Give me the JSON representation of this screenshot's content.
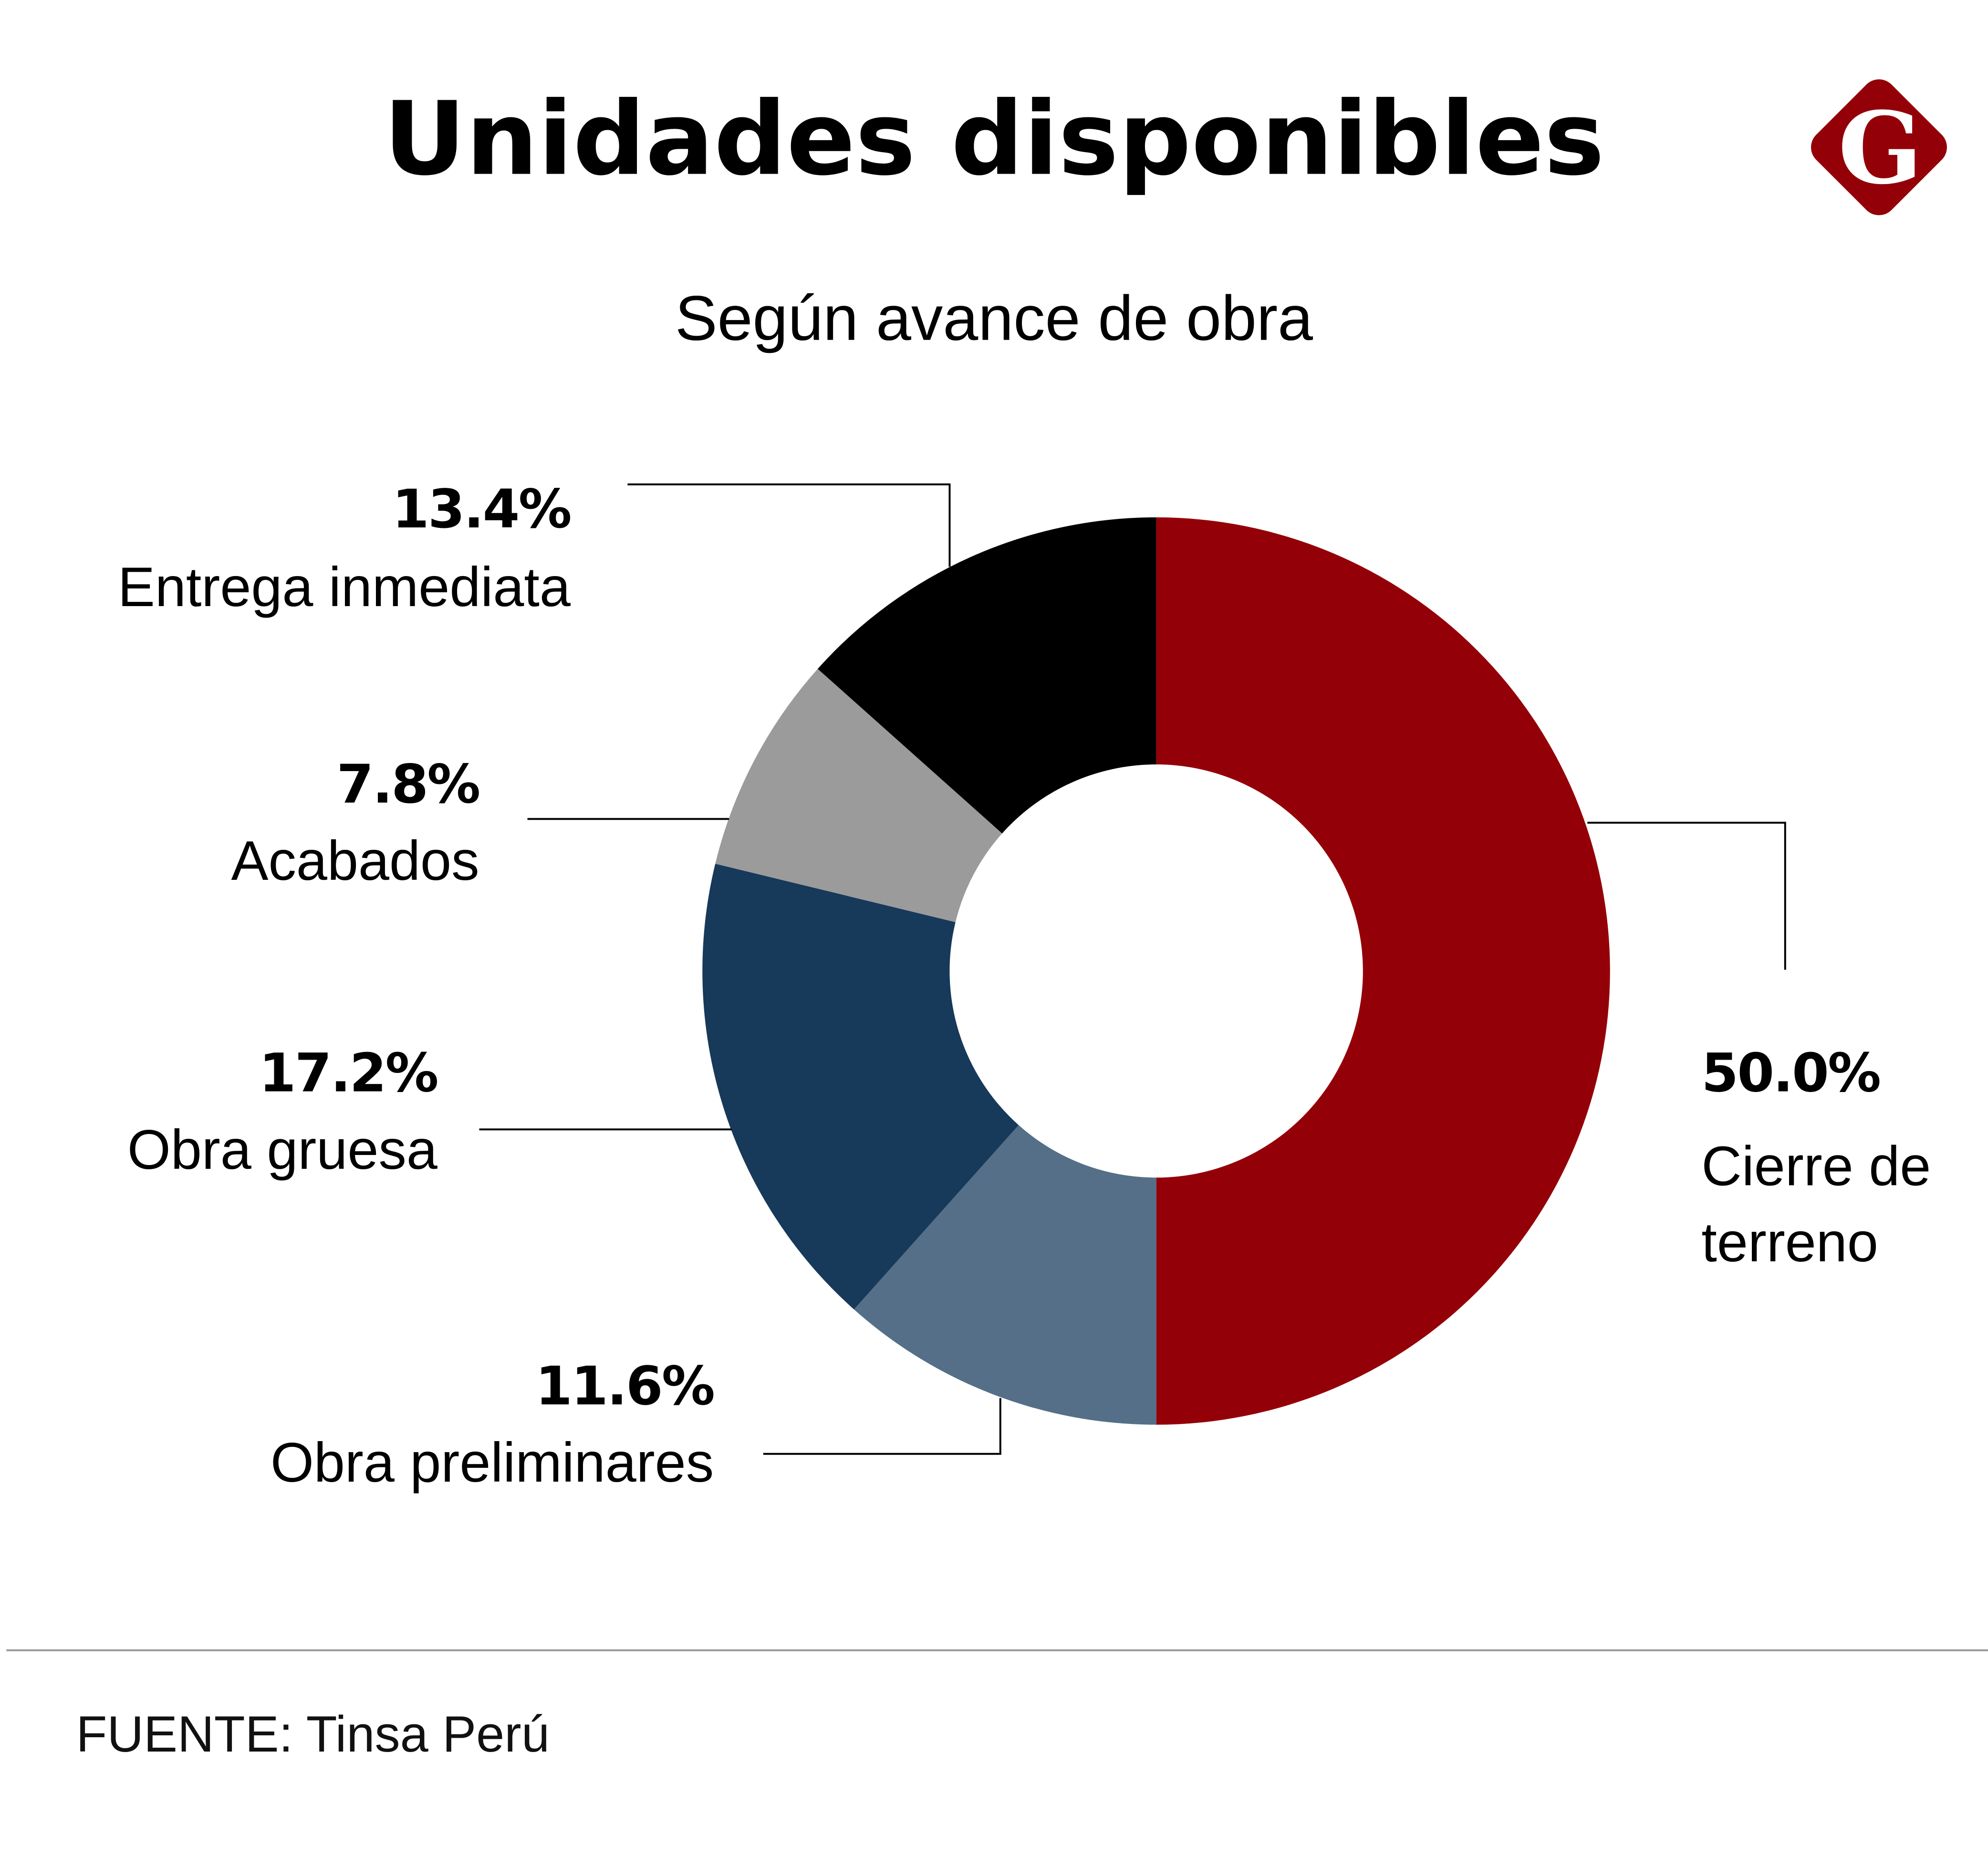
{
  "title": "Unidades disponibles",
  "logo": {
    "letter": "G",
    "color": "#940008"
  },
  "source": "FUENTE: Tinsa Perú",
  "chart_data": {
    "type": "pie",
    "donut": true,
    "title": "Unidades disponibles",
    "subtitle": "Según avance de obra",
    "unit": "%",
    "slices": [
      {
        "name": "Cierre de terreno",
        "line1": "Cierre de",
        "line2": "terreno",
        "value": 50.0,
        "label": "50.0%",
        "color": "#940008"
      },
      {
        "name": "Obra preliminares",
        "value": 11.6,
        "label": "11.6%",
        "color": "#546f87"
      },
      {
        "name": "Obra gruesa",
        "value": 17.2,
        "label": "17.2%",
        "color": "#17395a"
      },
      {
        "name": "Acabados",
        "value": 7.8,
        "label": "7.8%",
        "color": "#9b9b9b"
      },
      {
        "name": "Entrega inmediata",
        "value": 13.4,
        "label": "13.4%",
        "color": "#000000"
      }
    ]
  }
}
